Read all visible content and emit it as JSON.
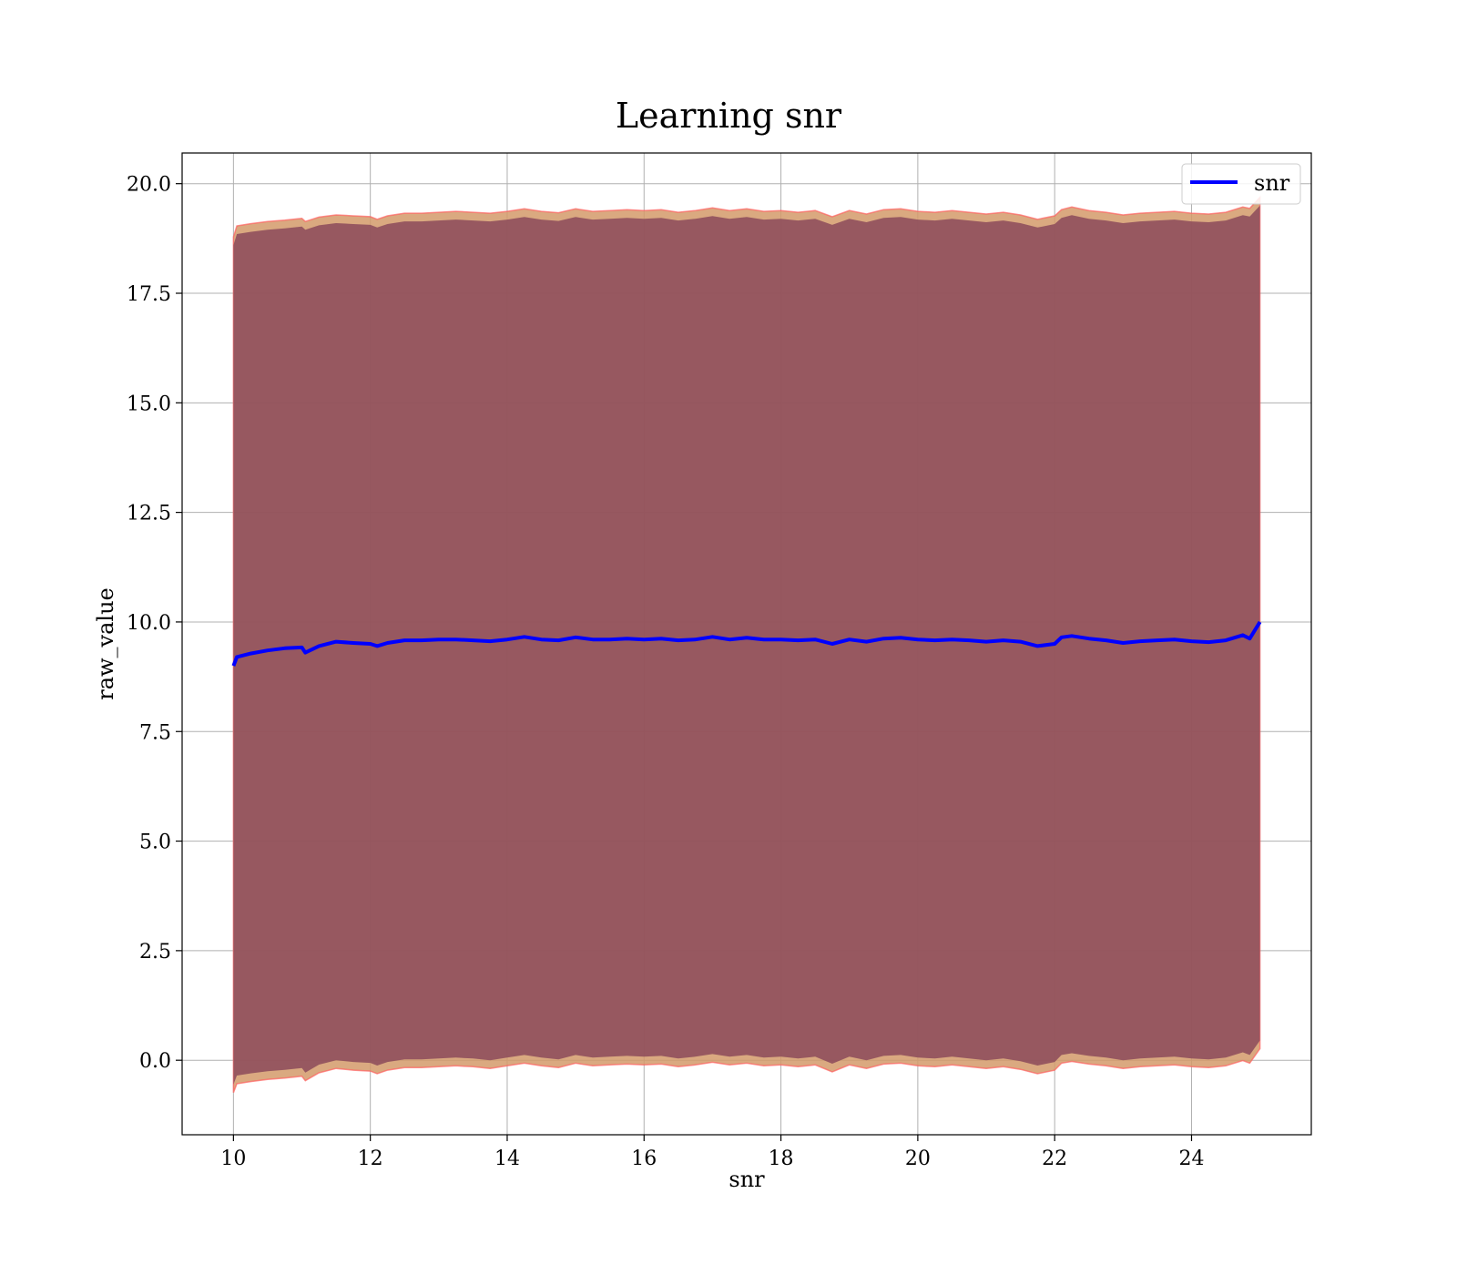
{
  "chart_data": {
    "type": "line",
    "title": "Learning snr",
    "xlabel": "snr",
    "ylabel": "raw_value",
    "xlim": [
      9.25,
      25.75
    ],
    "ylim": [
      -1.7,
      20.7
    ],
    "xticks": [
      10,
      12,
      14,
      16,
      18,
      20,
      22,
      24
    ],
    "yticks": [
      0.0,
      2.5,
      5.0,
      7.5,
      10.0,
      12.5,
      15.0,
      17.5,
      20.0
    ],
    "xtick_labels": [
      "10",
      "12",
      "14",
      "16",
      "18",
      "20",
      "22",
      "24"
    ],
    "ytick_labels": [
      "0.0",
      "2.5",
      "5.0",
      "7.5",
      "10.0",
      "12.5",
      "15.0",
      "17.5",
      "20.0"
    ],
    "grid": true,
    "legend": {
      "position": "top-right",
      "entries": [
        "snr"
      ]
    },
    "colors": {
      "line": "#0000ff",
      "band": "#8b4a5a",
      "band_edge": "#d49a6a",
      "band_outline": "#ff6060"
    },
    "series": [
      {
        "name": "snr",
        "x": [
          10.0,
          10.05,
          10.25,
          10.5,
          10.75,
          11.0,
          11.05,
          11.25,
          11.5,
          11.75,
          12.0,
          12.1,
          12.25,
          12.5,
          12.75,
          13.0,
          13.25,
          13.5,
          13.75,
          14.0,
          14.25,
          14.5,
          14.75,
          15.0,
          15.25,
          15.5,
          15.75,
          16.0,
          16.25,
          16.5,
          16.75,
          17.0,
          17.25,
          17.5,
          17.75,
          18.0,
          18.25,
          18.5,
          18.75,
          19.0,
          19.25,
          19.5,
          19.75,
          20.0,
          20.25,
          20.5,
          20.75,
          21.0,
          21.25,
          21.5,
          21.75,
          22.0,
          22.1,
          22.25,
          22.5,
          22.75,
          23.0,
          23.25,
          23.5,
          23.75,
          24.0,
          24.25,
          24.5,
          24.75,
          24.85,
          25.0
        ],
        "y": [
          9.0,
          9.2,
          9.28,
          9.35,
          9.4,
          9.42,
          9.3,
          9.45,
          9.55,
          9.52,
          9.5,
          9.45,
          9.52,
          9.58,
          9.58,
          9.6,
          9.6,
          9.58,
          9.56,
          9.6,
          9.66,
          9.6,
          9.58,
          9.65,
          9.6,
          9.6,
          9.62,
          9.6,
          9.62,
          9.58,
          9.6,
          9.66,
          9.6,
          9.64,
          9.6,
          9.6,
          9.58,
          9.6,
          9.5,
          9.6,
          9.55,
          9.62,
          9.64,
          9.6,
          9.58,
          9.6,
          9.58,
          9.55,
          9.58,
          9.55,
          9.45,
          9.5,
          9.65,
          9.68,
          9.62,
          9.58,
          9.52,
          9.56,
          9.58,
          9.6,
          9.56,
          9.54,
          9.58,
          9.7,
          9.62,
          10.0
        ],
        "upper": [
          18.6,
          18.85,
          18.9,
          18.95,
          18.98,
          19.02,
          18.95,
          19.05,
          19.1,
          19.08,
          19.06,
          19.0,
          19.08,
          19.14,
          19.14,
          19.16,
          19.18,
          19.16,
          19.14,
          19.18,
          19.24,
          19.18,
          19.15,
          19.24,
          19.18,
          19.2,
          19.22,
          19.2,
          19.22,
          19.16,
          19.2,
          19.26,
          19.2,
          19.24,
          19.18,
          19.2,
          19.16,
          19.2,
          19.06,
          19.2,
          19.12,
          19.22,
          19.24,
          19.18,
          19.16,
          19.2,
          19.16,
          19.12,
          19.16,
          19.1,
          19.0,
          19.08,
          19.22,
          19.28,
          19.2,
          19.16,
          19.1,
          19.14,
          19.16,
          19.18,
          19.14,
          19.12,
          19.16,
          19.28,
          19.25,
          19.5
        ],
        "lower": [
          -0.55,
          -0.35,
          -0.3,
          -0.25,
          -0.22,
          -0.18,
          -0.28,
          -0.1,
          0.0,
          -0.04,
          -0.06,
          -0.12,
          -0.04,
          0.02,
          0.02,
          0.04,
          0.06,
          0.04,
          0.0,
          0.06,
          0.12,
          0.06,
          0.02,
          0.12,
          0.06,
          0.08,
          0.1,
          0.08,
          0.1,
          0.04,
          0.08,
          0.14,
          0.08,
          0.12,
          0.06,
          0.08,
          0.04,
          0.08,
          -0.08,
          0.08,
          0.0,
          0.1,
          0.12,
          0.06,
          0.04,
          0.08,
          0.04,
          0.0,
          0.04,
          -0.02,
          -0.12,
          -0.04,
          0.12,
          0.16,
          0.1,
          0.06,
          0.0,
          0.04,
          0.06,
          0.08,
          0.04,
          0.02,
          0.06,
          0.18,
          0.12,
          0.45
        ]
      }
    ]
  }
}
